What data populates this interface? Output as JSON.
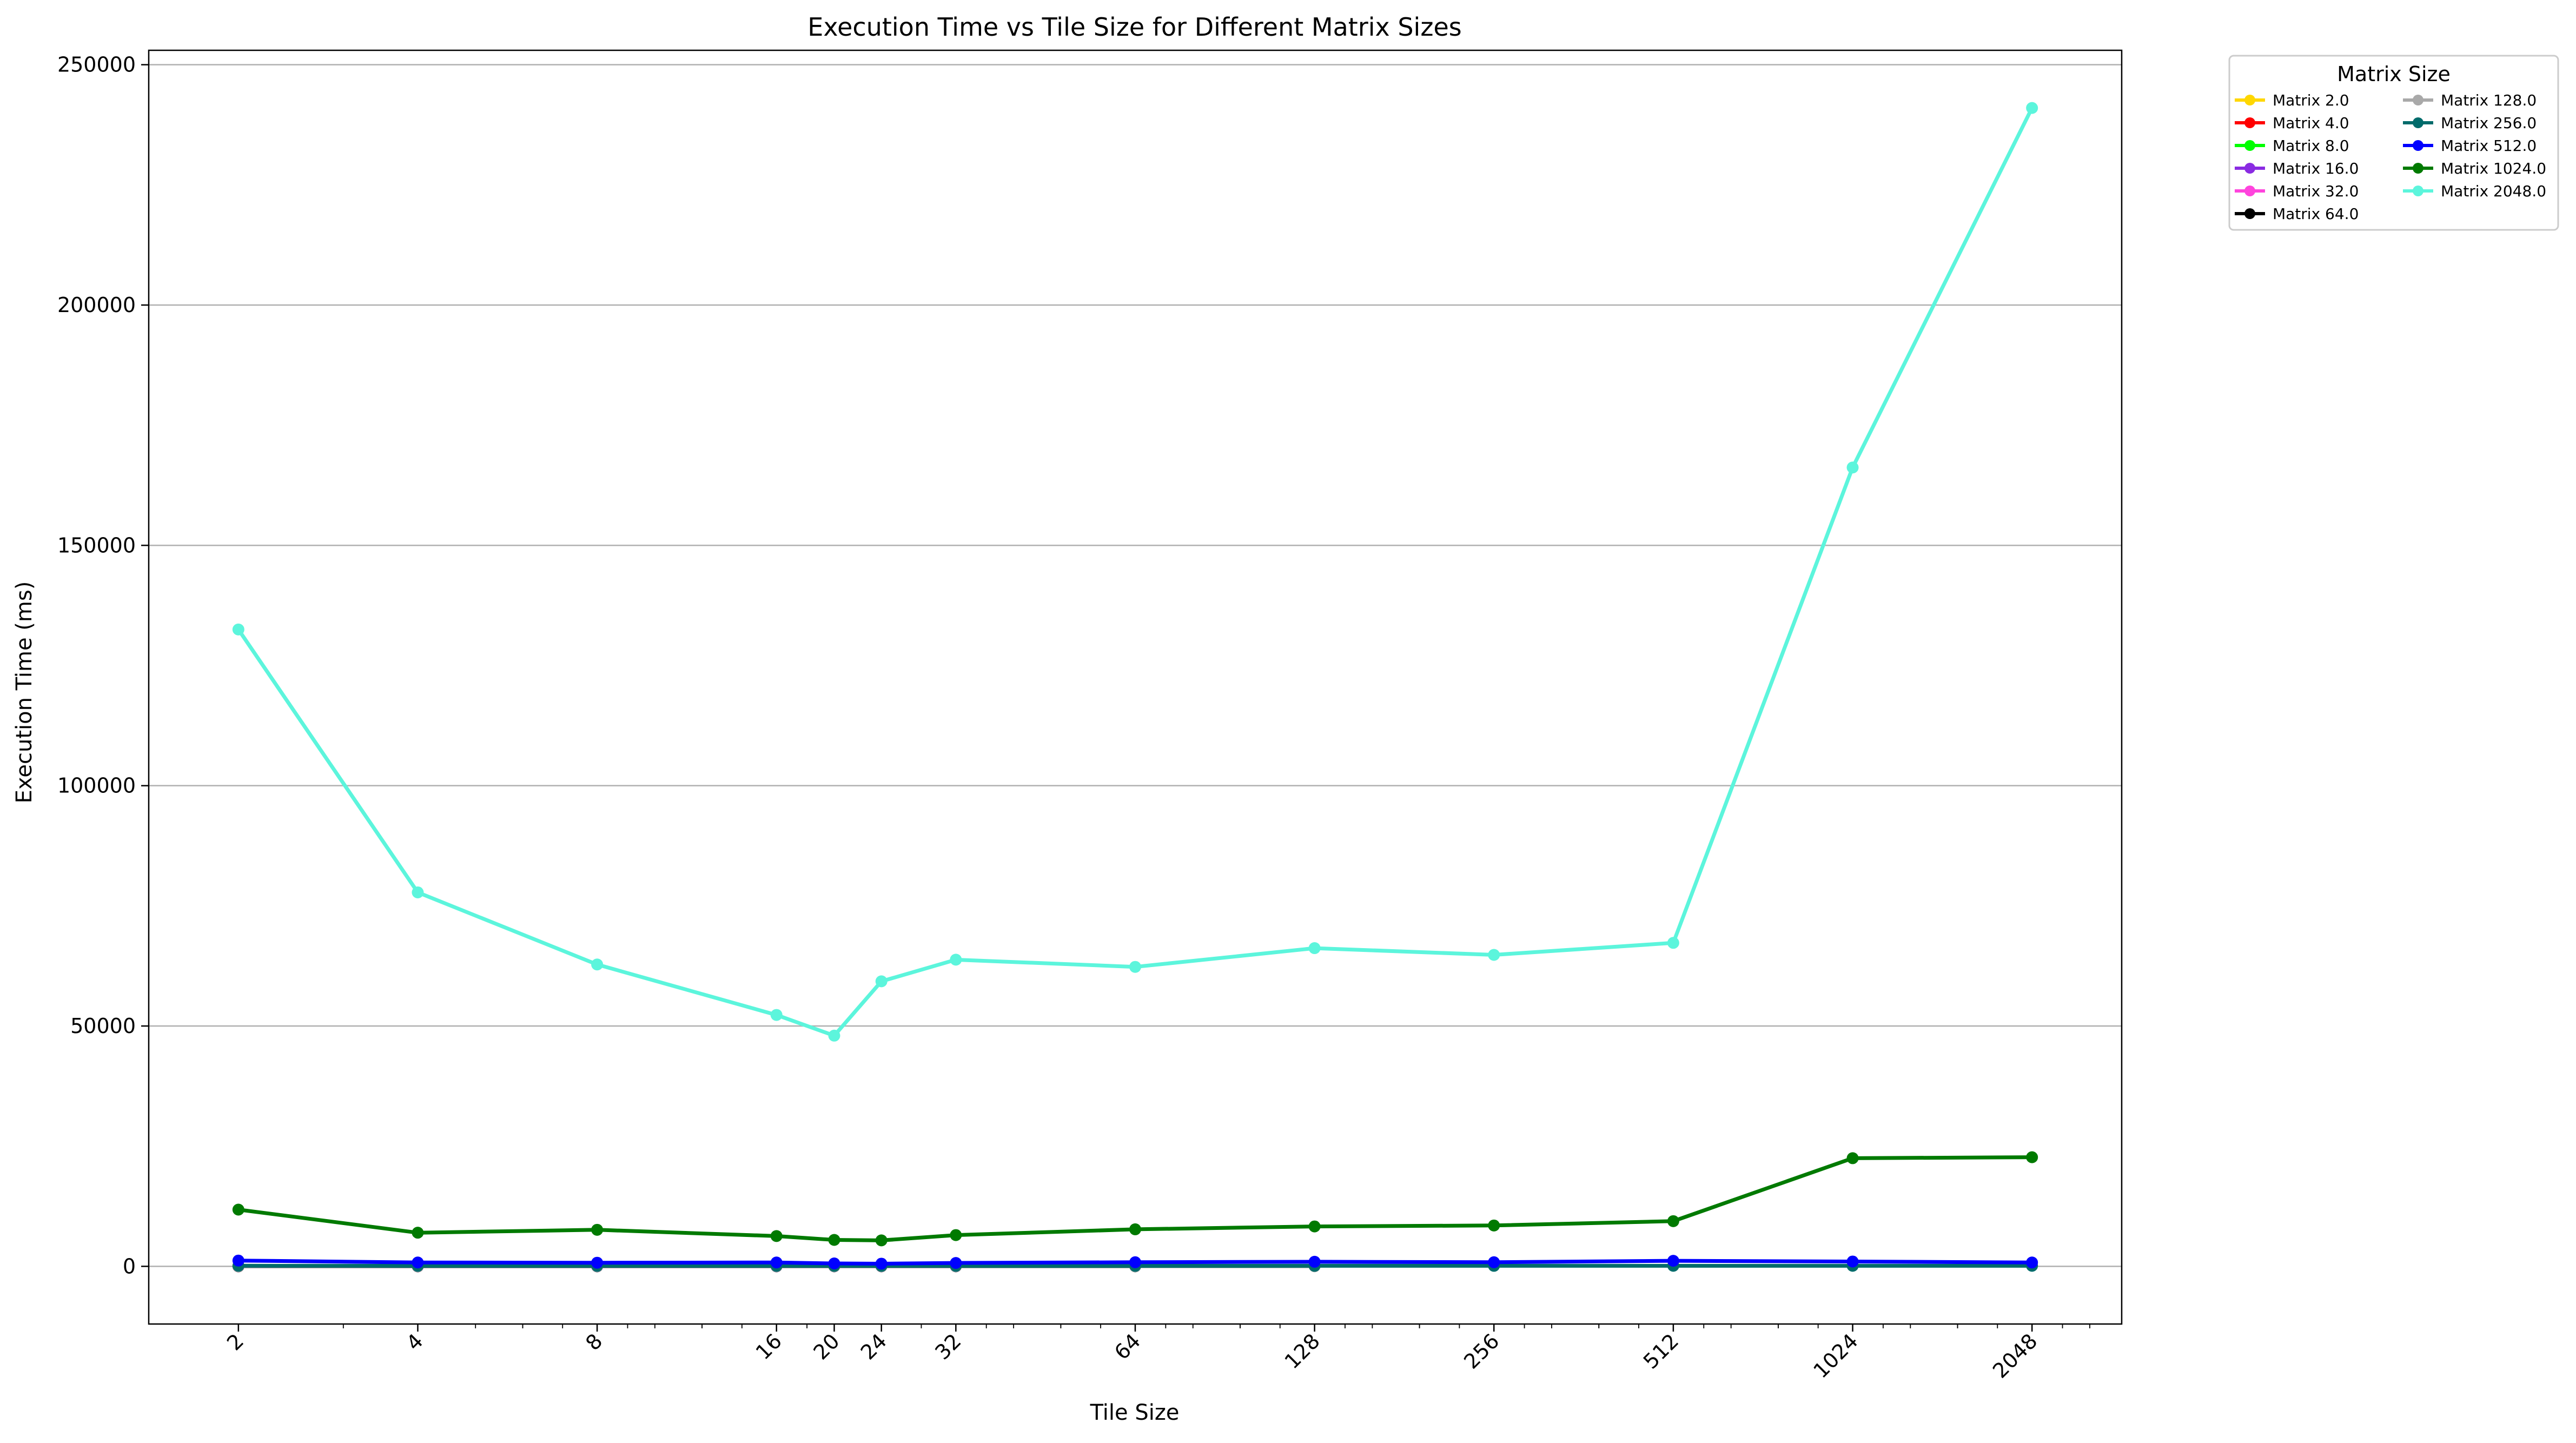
{
  "chart_data": {
    "type": "line",
    "title": "Execution Time vs Tile Size for Different Matrix Sizes",
    "xlabel": "Tile Size",
    "ylabel": "Execution Time (ms)",
    "x_scale": "log2",
    "x": [
      2,
      4,
      8,
      16,
      20,
      24,
      32,
      64,
      128,
      256,
      512,
      1024,
      2048
    ],
    "x_tick_labels": [
      "2",
      "4",
      "8",
      "16",
      "20",
      "24",
      "32",
      "64",
      "128",
      "256",
      "512",
      "1024",
      "2048"
    ],
    "ylim": [
      -12000,
      253000
    ],
    "y_ticks": [
      0,
      50000,
      100000,
      150000,
      200000,
      250000
    ],
    "y_tick_labels": [
      "0",
      "50000",
      "100000",
      "150000",
      "200000",
      "250000"
    ],
    "grid": "y",
    "legend_title": "Matrix Size",
    "legend_position": "outside-top-right",
    "series": [
      {
        "name": "Matrix 2.0",
        "color": "#ffd700",
        "x": [
          2
        ],
        "values": [
          0
        ]
      },
      {
        "name": "Matrix 4.0",
        "color": "#ff0000",
        "x": [
          2,
          4
        ],
        "values": [
          0,
          0
        ]
      },
      {
        "name": "Matrix 8.0",
        "color": "#00ff00",
        "x": [
          2,
          4,
          8
        ],
        "values": [
          0,
          0,
          0
        ]
      },
      {
        "name": "Matrix 16.0",
        "color": "#8a2be2",
        "x": [
          2,
          4,
          8,
          16
        ],
        "values": [
          0,
          0,
          0,
          0
        ]
      },
      {
        "name": "Matrix 32.0",
        "color": "#ff44dd",
        "x": [
          2,
          4,
          8,
          16,
          20,
          24,
          32
        ],
        "values": [
          0,
          0,
          0,
          0,
          0,
          0,
          0
        ]
      },
      {
        "name": "Matrix 64.0",
        "color": "#000000",
        "x": [
          2,
          4,
          8,
          16,
          20,
          24,
          32,
          64
        ],
        "values": [
          2,
          2,
          2,
          2,
          2,
          2,
          2,
          2
        ]
      },
      {
        "name": "Matrix 128.0",
        "color": "#a9a9a9",
        "x": [
          2,
          4,
          8,
          16,
          20,
          24,
          32,
          64,
          128
        ],
        "values": [
          15,
          12,
          12,
          12,
          12,
          12,
          12,
          12,
          14
        ]
      },
      {
        "name": "Matrix 256.0",
        "color": "#006b6b",
        "x": [
          2,
          4,
          8,
          16,
          20,
          24,
          32,
          64,
          128,
          256,
          512,
          1024,
          2048
        ],
        "values": [
          120,
          100,
          100,
          100,
          95,
          95,
          100,
          100,
          105,
          105,
          110,
          110,
          110
        ]
      },
      {
        "name": "Matrix 512.0",
        "color": "#0000ff",
        "x": [
          2,
          4,
          8,
          16,
          20,
          24,
          32,
          64,
          128,
          256,
          512,
          1024,
          2048
        ],
        "values": [
          1200,
          800,
          750,
          800,
          600,
          550,
          700,
          850,
          950,
          850,
          1150,
          1000,
          800
        ]
      },
      {
        "name": "Matrix 1024.0",
        "color": "#007a00",
        "x": [
          2,
          4,
          8,
          16,
          20,
          24,
          32,
          64,
          128,
          256,
          512,
          1024,
          2048
        ],
        "values": [
          11800,
          7000,
          7600,
          6300,
          5500,
          5400,
          6500,
          7700,
          8300,
          8500,
          9400,
          22500,
          22700
        ]
      },
      {
        "name": "Matrix 2048.0",
        "color": "#5cf5dc",
        "x": [
          2,
          4,
          8,
          16,
          20,
          24,
          32,
          64,
          128,
          256,
          512,
          1024,
          2048
        ],
        "values": [
          132500,
          77800,
          62800,
          52300,
          48000,
          59300,
          63800,
          62300,
          66200,
          64800,
          67300,
          166200,
          241000
        ]
      }
    ]
  }
}
